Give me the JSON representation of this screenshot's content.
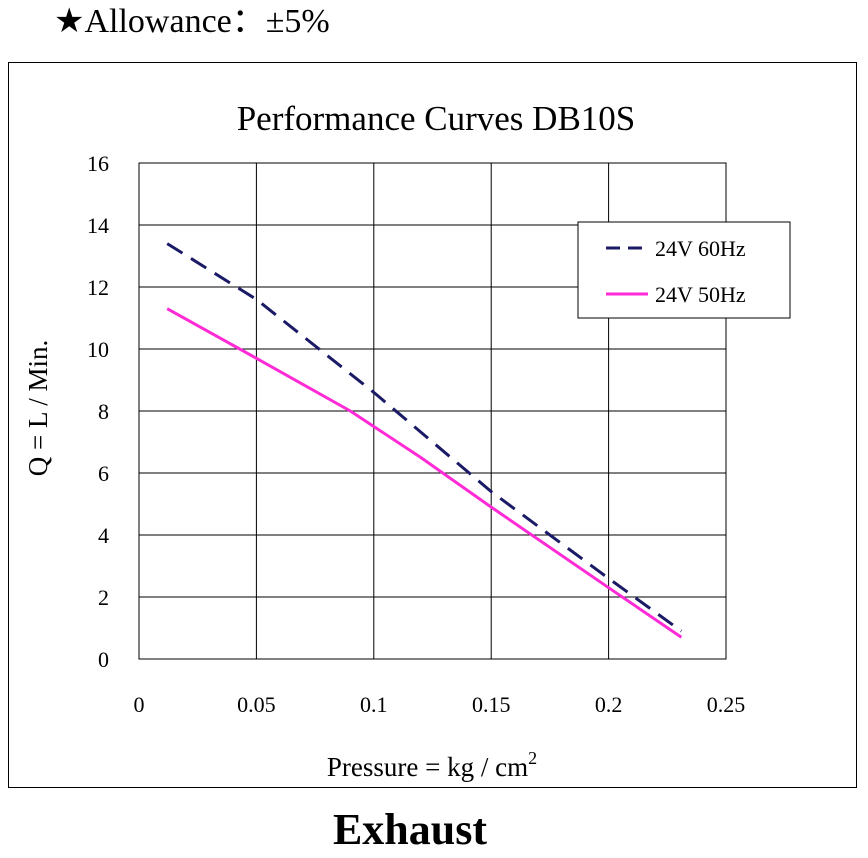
{
  "header": {
    "star": "★",
    "allowance": "Allowance：±5%"
  },
  "footer": {
    "label": "Exhaust"
  },
  "chart_data": {
    "type": "line",
    "title": "Performance  Curves  DB10S",
    "xlabel": "Pressure = kg / cm",
    "xlabel_sup": "2",
    "ylabel": "Q = L / Min.",
    "xlim": [
      0,
      0.25
    ],
    "ylim": [
      0,
      16
    ],
    "x_ticks": [
      0,
      0.05,
      0.1,
      0.15,
      0.2,
      0.25
    ],
    "x_tick_labels": [
      "0",
      "0.05",
      "0.1",
      "0.15",
      "0.2",
      "0.25"
    ],
    "y_ticks": [
      0,
      2,
      4,
      6,
      8,
      10,
      12,
      14,
      16
    ],
    "y_tick_labels": [
      "0",
      "2",
      "4",
      "6",
      "8",
      "10",
      "12",
      "14",
      "16"
    ],
    "grid": true,
    "legend_position": "top-right",
    "series": [
      {
        "name": "24V 60Hz",
        "color": "#1a1a66",
        "dash": true,
        "x": [
          0.012,
          0.05,
          0.1,
          0.15,
          0.2,
          0.231
        ],
        "y": [
          13.4,
          11.6,
          8.6,
          5.4,
          2.6,
          0.9
        ]
      },
      {
        "name": "24V 50Hz",
        "color": "#ff2bd6",
        "dash": false,
        "x": [
          0.012,
          0.05,
          0.09,
          0.12,
          0.15,
          0.2,
          0.231
        ],
        "y": [
          11.3,
          9.7,
          8.0,
          6.5,
          4.9,
          2.3,
          0.7
        ]
      }
    ]
  }
}
